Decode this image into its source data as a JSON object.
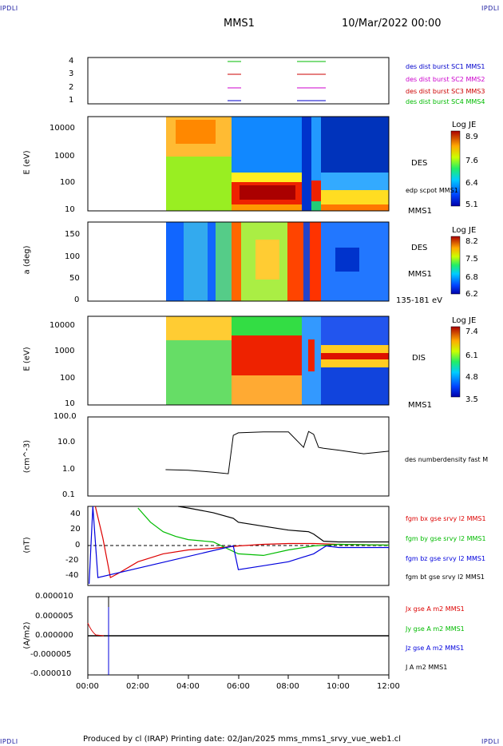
{
  "corner_label": "IPDLI",
  "header": {
    "spacecraft": "MMS1",
    "datetime": "10/Mar/2022 00:00"
  },
  "footer": {
    "text": "Produced by cl (IRAP)   Printing date: 02/Jan/2025   mms_mms1_srvy_vue_web1.cl"
  },
  "x_ticks": [
    "00:00",
    "02:00",
    "04:00",
    "06:00",
    "08:00",
    "10:00",
    "12:00"
  ],
  "panels": {
    "burst": {
      "y_ticks": [
        "4",
        "3",
        "2",
        "1"
      ],
      "legend": [
        {
          "text": "des dist burst SC1 MMS1",
          "color": "#0000cc"
        },
        {
          "text": "des dist burst SC2 MMS2",
          "color": "#cc00cc"
        },
        {
          "text": "des dist burst SC3 MMS3",
          "color": "#cc0000"
        },
        {
          "text": "des dist burst SC4 MMS4",
          "color": "#00bb00"
        }
      ]
    },
    "des_energy": {
      "ylabel": "E (eV)",
      "y_ticks": [
        "10000",
        "1000",
        "100",
        "10"
      ],
      "label_main": "DES",
      "label_sub": "edp scpot MMS1",
      "label_bottom": "MMS1",
      "cb_title": "Log JE",
      "cb_ticks": [
        "8.9",
        "7.6",
        "6.4",
        "5.1"
      ]
    },
    "des_pitch": {
      "ylabel": "a (deg)",
      "y_ticks": [
        "150",
        "100",
        "50",
        "0"
      ],
      "label_main": "DES",
      "label_sub": "MMS1",
      "label_bottom": "135-181 eV",
      "cb_title": "Log JE",
      "cb_ticks": [
        "8.2",
        "7.5",
        "6.8",
        "6.2"
      ]
    },
    "dis_energy": {
      "ylabel": "E (eV)",
      "y_ticks": [
        "10000",
        "1000",
        "100",
        "10"
      ],
      "label_main": "DIS",
      "label_bottom": "MMS1",
      "cb_title": "Log JE",
      "cb_ticks": [
        "7.4",
        "6.1",
        "4.8",
        "3.5"
      ]
    },
    "density": {
      "ylabel": "(cm^-3)",
      "y_ticks": [
        "100.0",
        "10.0",
        "1.0",
        "0.1"
      ],
      "legend": "des numberdensity fast M"
    },
    "bfield": {
      "ylabel": "(nT)",
      "y_ticks": [
        "40",
        "20",
        "0",
        "-20",
        "-40"
      ],
      "legend": [
        {
          "text": "fgm bx gse srvy l2 MMS1",
          "color": "#dd0000"
        },
        {
          "text": "fgm by gse srvy l2 MMS1",
          "color": "#00bb00"
        },
        {
          "text": "fgm bz gse srvy l2 MMS1",
          "color": "#0000dd"
        },
        {
          "text": "fgm bt gse srvy l2 MMS1",
          "color": "#000000"
        }
      ]
    },
    "current": {
      "ylabel": "(A/m2)",
      "y_ticks": [
        "0.000010",
        "0.000005",
        "0.000000",
        "-0.000005",
        "-0.000010"
      ],
      "legend": [
        {
          "text": "Jx gse A m2 MMS1",
          "color": "#dd0000"
        },
        {
          "text": "Jy gse A m2 MMS1",
          "color": "#00bb00"
        },
        {
          "text": "Jz gse A m2 MMS1",
          "color": "#0000dd"
        },
        {
          "text": "J A m2 MMS1",
          "color": "#000000"
        }
      ]
    }
  },
  "chart_data": [
    {
      "type": "line",
      "subject": "density",
      "x_unit": "hours from 00:00",
      "x": [
        3.1,
        4.0,
        5.0,
        5.6,
        5.8,
        6.0,
        7.0,
        8.0,
        8.6,
        8.8,
        9.0,
        9.2,
        9.4,
        10.0,
        11.0,
        12.0
      ],
      "values": [
        1.0,
        0.95,
        0.8,
        0.7,
        20,
        25,
        27,
        27,
        7,
        28,
        22,
        7,
        6.5,
        5.5,
        4,
        5
      ],
      "ylim": [
        0.1,
        100
      ],
      "log_y": true
    },
    {
      "type": "line",
      "subject": "bfield",
      "x_unit": "hours from 00:00",
      "ylim": [
        -50,
        50
      ],
      "series": [
        {
          "name": "fgm bx gse srvy l2 MMS1",
          "color": "#dd0000",
          "x": [
            0.3,
            0.6,
            0.9,
            1.2,
            2.0,
            3.0,
            4.0,
            5.0,
            6.0,
            7.0,
            8.0,
            9.0,
            10.0,
            12.0
          ],
          "values": [
            50,
            10,
            -40,
            -35,
            -20,
            -10,
            -5,
            -3,
            0,
            2,
            3,
            3,
            2,
            1
          ]
        },
        {
          "name": "fgm by gse srvy l2 MMS1",
          "color": "#00bb00",
          "x": [
            2.0,
            2.5,
            3.0,
            3.5,
            4.0,
            5.0,
            6.0,
            7.0,
            8.0,
            9.0,
            10.0,
            12.0
          ],
          "values": [
            48,
            30,
            18,
            12,
            8,
            5,
            -10,
            -12,
            -5,
            0,
            2,
            1
          ]
        },
        {
          "name": "fgm bz gse srvy l2 MMS1",
          "color": "#0000dd",
          "x": [
            0.05,
            0.2,
            0.4,
            5.8,
            6.0,
            7.0,
            8.0,
            9.0,
            9.5,
            10.0,
            12.0
          ],
          "values": [
            -48,
            50,
            -40,
            0,
            -30,
            -25,
            -20,
            -10,
            0,
            -2,
            -2
          ]
        },
        {
          "name": "fgm bt gse srvy l2 MMS1",
          "color": "#000000",
          "x": [
            3.6,
            4.0,
            5.0,
            5.8,
            6.0,
            7.0,
            8.0,
            8.8,
            9.0,
            9.4,
            10.0,
            12.0
          ],
          "values": [
            50,
            48,
            42,
            35,
            30,
            25,
            20,
            18,
            15,
            6,
            5,
            5
          ]
        }
      ]
    }
  ]
}
